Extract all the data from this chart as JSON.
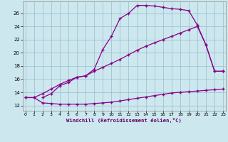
{
  "title": "",
  "xlabel": "Windchill (Refroidissement éolien,°C)",
  "bg_color": "#cce8ee",
  "line_color": "#880088",
  "marker": "+",
  "x_ticks": [
    0,
    1,
    2,
    3,
    4,
    5,
    6,
    7,
    8,
    9,
    10,
    11,
    12,
    13,
    14,
    15,
    16,
    17,
    18,
    19,
    20,
    21,
    22,
    23
  ],
  "y_ticks": [
    12,
    14,
    16,
    18,
    20,
    22,
    24,
    26
  ],
  "xlim": [
    -0.3,
    23.3
  ],
  "ylim": [
    11.2,
    27.8
  ],
  "series": [
    {
      "x": [
        0,
        1,
        2,
        3,
        4,
        5,
        6,
        7,
        8,
        9,
        10,
        11,
        12,
        13,
        14,
        15,
        16,
        17,
        18,
        19,
        20,
        21,
        22,
        23
      ],
      "y": [
        13.2,
        13.2,
        12.4,
        12.3,
        12.2,
        12.2,
        12.2,
        12.2,
        12.3,
        12.4,
        12.5,
        12.7,
        12.9,
        13.1,
        13.3,
        13.5,
        13.7,
        13.9,
        14.0,
        14.1,
        14.2,
        14.3,
        14.4,
        14.5
      ]
    },
    {
      "x": [
        0,
        1,
        2,
        3,
        4,
        5,
        6,
        7,
        8,
        9,
        10,
        11,
        12,
        13,
        14,
        15,
        16,
        17,
        18,
        19,
        20,
        21,
        22,
        23
      ],
      "y": [
        13.2,
        13.2,
        13.8,
        14.5,
        15.2,
        15.8,
        16.3,
        16.5,
        17.2,
        17.8,
        18.4,
        19.0,
        19.7,
        20.4,
        21.0,
        21.5,
        22.0,
        22.5,
        23.0,
        23.5,
        24.0,
        21.2,
        17.2,
        17.2
      ]
    },
    {
      "x": [
        2,
        3,
        4,
        5,
        6,
        7,
        8,
        9,
        10,
        11,
        12,
        13,
        14,
        15,
        16,
        17,
        18,
        19,
        20,
        21,
        22,
        23
      ],
      "y": [
        13.2,
        13.8,
        15.0,
        15.5,
        16.3,
        16.5,
        17.5,
        20.5,
        22.5,
        25.2,
        26.0,
        27.2,
        27.2,
        27.1,
        26.9,
        26.7,
        26.6,
        26.4,
        24.2,
        21.2,
        17.2,
        17.2
      ]
    }
  ]
}
